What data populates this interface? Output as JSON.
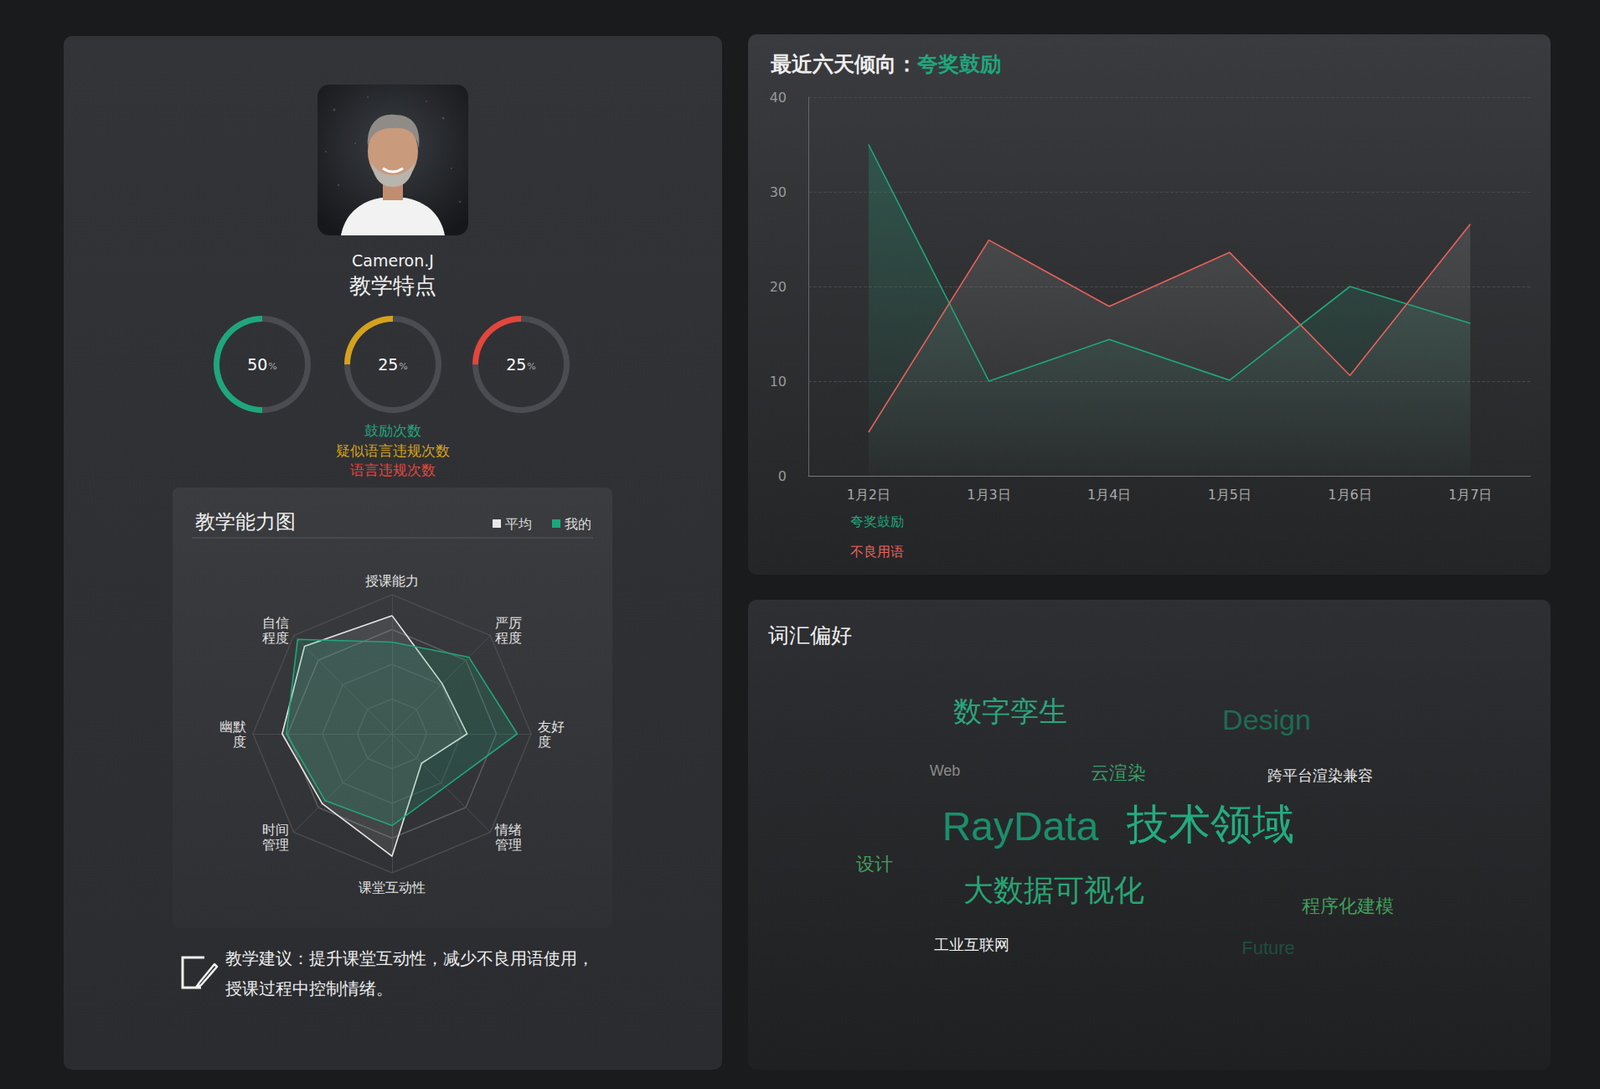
{
  "profile": {
    "name": "Cameron.J",
    "subtitle": "教学特点"
  },
  "advice": "教学建议：提升课堂互动性，减少不良用语使用，授课过程中控制情绪。",
  "chart_data": [
    {
      "type": "donut",
      "categories": [
        "鼓励次数",
        "疑似语言违规次数",
        "语言违规次数"
      ],
      "values": [
        50,
        25,
        25
      ],
      "value_labels": [
        "50%",
        "25%",
        "25%"
      ],
      "colors": [
        "#1fa77c",
        "#d4a21c",
        "#e2463c"
      ],
      "data_labels": true
    },
    {
      "type": "radar",
      "title": "教学能力图",
      "categories": [
        "授课能力",
        "自信\n程度",
        "幽默\n度",
        "时间\n管理",
        "课堂互动性",
        "情绪\n管理",
        "友好\n度",
        "严厉\n程度"
      ],
      "series": [
        {
          "name": "平均",
          "color": "#e8e8e8",
          "values": [
            85,
            89,
            79,
            71,
            88,
            30,
            54,
            51
          ]
        },
        {
          "name": "我的",
          "color": "#1fa77c",
          "values": [
            66,
            96,
            76,
            68,
            66,
            54,
            90,
            78
          ]
        }
      ],
      "ylim": [
        0,
        100
      ],
      "legend": "upper right",
      "tick_labels": false
    },
    {
      "type": "line",
      "title": "最近六天倾向：",
      "subtitle": "夸奖鼓励",
      "categories": [
        "1月2日",
        "1月3日",
        "1月4日",
        "1月5日",
        "1月6日",
        "1月7日"
      ],
      "series": [
        {
          "name": "夸奖鼓励",
          "color": "#1fa77c",
          "values": [
            35,
            10,
            14.4,
            10.1,
            20,
            16.1
          ]
        },
        {
          "name": "不良用语",
          "color": "#e8615a",
          "values": [
            4.6,
            24.9,
            17.9,
            23.6,
            10.6,
            26.6
          ]
        }
      ],
      "ylim": [
        0,
        40
      ],
      "yticks": [
        0,
        10,
        20,
        30,
        40
      ],
      "grid": true,
      "legend": "lower left"
    },
    {
      "type": "wordcloud",
      "title": "词汇偏好",
      "words": [
        {
          "text": "数字孪生",
          "weight": 6,
          "color": "#2aa57d"
        },
        {
          "text": "Design",
          "weight": 6,
          "color": "#1d6b53"
        },
        {
          "text": "Web",
          "weight": 2,
          "color": "#8a8a8a"
        },
        {
          "text": "云渲染",
          "weight": 3,
          "color": "#35a06a"
        },
        {
          "text": "跨平台渲染兼容",
          "weight": 2,
          "color": "#e6e6e6"
        },
        {
          "text": "RayData",
          "weight": 9.5,
          "color": "#1a8f6b"
        },
        {
          "text": "技术领域",
          "weight": 10,
          "color": "#22ac80"
        },
        {
          "text": "设计",
          "weight": 3,
          "color": "#3e9f5a"
        },
        {
          "text": "大数据可视化",
          "weight": 6.5,
          "color": "#27a574"
        },
        {
          "text": "程序化建模",
          "weight": 3,
          "color": "#3e9f5a"
        },
        {
          "text": "工业互联网",
          "weight": 2,
          "color": "#f0f0f0"
        },
        {
          "text": "Future",
          "weight": 3,
          "color": "#1f4d3e"
        }
      ]
    }
  ]
}
